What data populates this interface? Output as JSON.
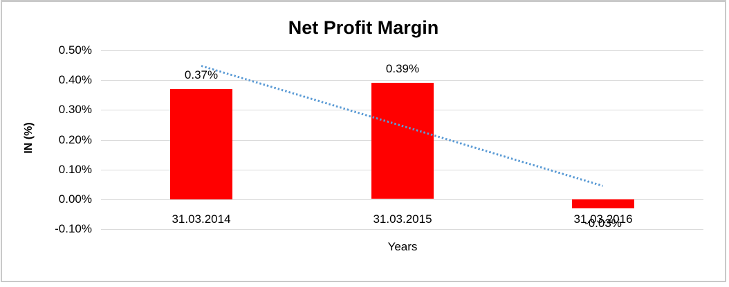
{
  "window": {
    "background": "#ffffff",
    "frame_border_color": "#c9c9c9"
  },
  "chart_data": {
    "type": "bar",
    "title": "Net Profit Margin",
    "categories": [
      "31.03.2014",
      "31.03.2015",
      "31.03.2016"
    ],
    "values": [
      0.37,
      0.39,
      -0.03
    ],
    "data_labels": [
      "0.37%",
      "0.39%",
      "-0.03%"
    ],
    "xlabel": "Years",
    "ylabel": "IN (%)",
    "ylim": [
      -0.1,
      0.5
    ],
    "ytick_values": [
      0.5,
      0.4,
      0.3,
      0.2,
      0.1,
      0.0,
      -0.1
    ],
    "ytick_labels": [
      "0.50%",
      "0.40%",
      "0.30%",
      "0.20%",
      "0.10%",
      "0.00%",
      "-0.10%"
    ],
    "grid": true,
    "legend": "none",
    "bar_color": "#ff0000",
    "gridline_color": "#d9d9d9",
    "trendline": {
      "type": "linear",
      "style": "dotted",
      "color": "#5b9bd5",
      "start_value": 0.449,
      "end_value": 0.046
    }
  }
}
